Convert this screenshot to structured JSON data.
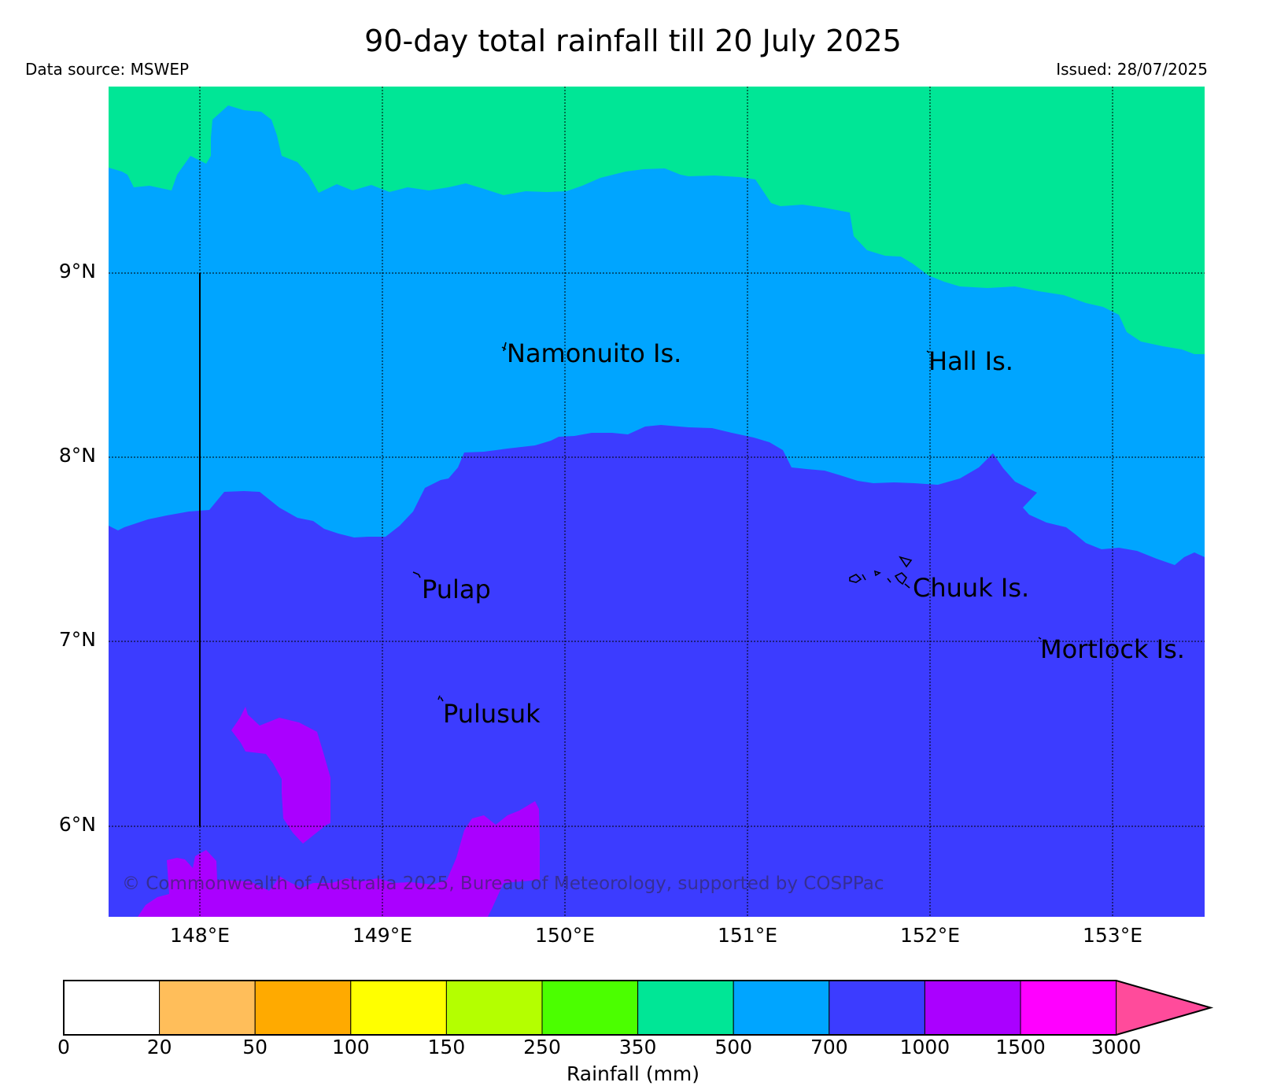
{
  "header": {
    "title": "90-day total rainfall till 20 July 2025",
    "source": "Data source: MSWEP",
    "issued": "Issued: 28/07/2025"
  },
  "map": {
    "lat_labels": [
      "9°N",
      "8°N",
      "7°N",
      "6°N"
    ],
    "lon_labels": [
      "148°E",
      "149°E",
      "150°E",
      "151°E",
      "152°E",
      "153°E"
    ],
    "places": [
      "Namonuito Is.",
      "Hall Is.",
      "Pulap",
      "Chuuk Is.",
      "Mortlock Is.",
      "Pulusuk"
    ],
    "grid": true,
    "zones": {
      "north": "350–500 mm",
      "middle": "500–700 mm",
      "south": "700–1000 mm",
      "patches": "1000–1500 mm"
    },
    "copyright": "© Commonwealth of Australia 2025, Bureau of Meteorology, supported by COSPPac"
  },
  "colorbar": {
    "ticks": [
      "0",
      "20",
      "50",
      "100",
      "150",
      "250",
      "350",
      "500",
      "700",
      "1000",
      "1500",
      "3000"
    ],
    "colors": [
      "#ffffff",
      "#ffbe5a",
      "#ffaa00",
      "#ffff00",
      "#b4ff00",
      "#4bff00",
      "#00e696",
      "#00a5ff",
      "#3c3cff",
      "#aa00ff",
      "#ff00ff",
      "#ff4b9b"
    ],
    "label": "Rainfall (mm)"
  }
}
